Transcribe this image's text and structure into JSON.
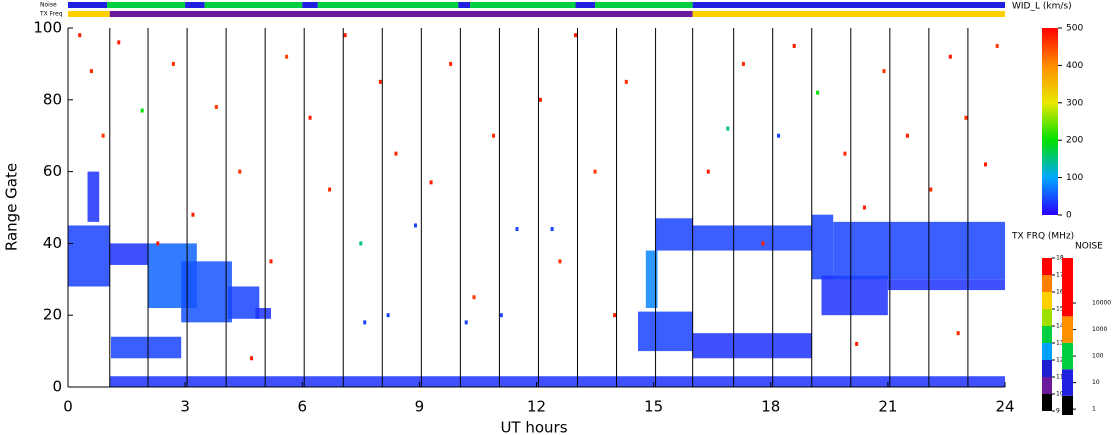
{
  "chart_data": {
    "type": "range-time",
    "xlabel": "UT hours",
    "ylabel": "Range Gate",
    "xlim": [
      0,
      24
    ],
    "ylim": [
      0,
      100
    ],
    "xticks": [
      0,
      3,
      6,
      9,
      12,
      15,
      18,
      21,
      24
    ],
    "yticks": [
      0,
      20,
      40,
      60,
      80,
      100
    ],
    "boundaries": [
      1.07,
      2.05,
      3.05,
      4.05,
      5.05,
      6.05,
      7.05,
      8.05,
      9.05,
      10.05,
      11.05,
      12.05,
      13.05,
      14.05,
      15.05,
      16.0,
      17.05,
      18.05,
      19.05,
      20.05,
      21.05,
      22.05,
      23.05
    ],
    "noise_label": "Noise",
    "tx_label": "TX Freq",
    "width_scale": {
      "title": "WID_L (km/s)",
      "lim": [
        0,
        500
      ],
      "ticks": [
        0,
        100,
        200,
        300,
        400,
        500
      ],
      "colors": [
        "#2a00ff",
        "#00a8ff",
        "#00e000",
        "#e8e800",
        "#ff8c00",
        "#ff0000"
      ]
    },
    "tx_scale": {
      "title": "TX FRQ (MHz)",
      "lim": [
        9,
        18
      ],
      "ticks": [
        9,
        10,
        11,
        12,
        13,
        14,
        15,
        16,
        17,
        18
      ],
      "colors": [
        "#000000",
        "#6a1a9a",
        "#2020d0",
        "#00a0ff",
        "#00d040",
        "#a0e000",
        "#ffd000",
        "#ff8000",
        "#ff0000"
      ]
    },
    "noise_scale": {
      "title": "NOISE",
      "lim": [
        0.6,
        500000
      ],
      "ticks": [
        1,
        10,
        100,
        1000,
        10000
      ],
      "log": true,
      "colors": [
        "#000000",
        "#2020e0",
        "#00d040",
        "#ff9000",
        "#ff0000"
      ]
    },
    "noise_strip": [
      [
        0,
        1,
        15
      ],
      [
        1,
        3,
        150
      ],
      [
        3,
        3.5,
        20
      ],
      [
        3.5,
        6,
        150
      ],
      [
        6,
        6.4,
        20
      ],
      [
        6.4,
        10,
        150
      ],
      [
        10,
        10.3,
        20
      ],
      [
        10.3,
        13,
        150
      ],
      [
        13,
        13.5,
        20
      ],
      [
        13.5,
        16,
        150
      ],
      [
        16,
        24,
        20
      ]
    ],
    "tx_strip": [
      [
        0,
        1.07,
        15.5
      ],
      [
        1.07,
        16.0,
        10.5
      ],
      [
        16.0,
        24,
        15.3
      ]
    ],
    "echoes": [
      [
        1.07,
        24,
        0,
        3,
        30
      ],
      [
        0,
        1.07,
        28,
        45,
        40
      ],
      [
        1.07,
        2.05,
        34,
        40,
        30
      ],
      [
        1.1,
        2.9,
        8,
        14,
        40
      ],
      [
        2.05,
        3.3,
        22,
        40,
        60
      ],
      [
        2.9,
        4.2,
        18,
        35,
        50
      ],
      [
        4.1,
        4.9,
        19,
        28,
        40
      ],
      [
        4.8,
        5.2,
        19,
        22,
        30
      ],
      [
        0.5,
        0.8,
        46,
        60,
        30
      ],
      [
        14.6,
        16.0,
        10,
        21,
        40
      ],
      [
        15.05,
        16.0,
        38,
        47,
        40
      ],
      [
        14.8,
        15.1,
        22,
        38,
        80
      ],
      [
        16.0,
        19.05,
        8,
        15,
        30
      ],
      [
        16.0,
        19.05,
        38,
        45,
        40
      ],
      [
        19.05,
        19.6,
        30,
        48,
        40
      ],
      [
        19.3,
        21.0,
        20,
        31,
        30
      ],
      [
        19.6,
        24,
        30,
        46,
        40
      ],
      [
        21.0,
        24,
        27,
        30,
        30
      ]
    ],
    "points": [
      [
        0.3,
        98,
        480
      ],
      [
        0.6,
        88,
        470
      ],
      [
        0.9,
        70,
        460
      ],
      [
        1.3,
        96,
        480
      ],
      [
        1.9,
        77,
        200
      ],
      [
        2.3,
        40,
        480
      ],
      [
        2.7,
        90,
        470
      ],
      [
        3.2,
        48,
        480
      ],
      [
        3.8,
        78,
        460
      ],
      [
        4.4,
        60,
        470
      ],
      [
        5.2,
        35,
        480
      ],
      [
        5.6,
        92,
        450
      ],
      [
        6.2,
        75,
        480
      ],
      [
        6.7,
        55,
        470
      ],
      [
        7.1,
        98,
        480
      ],
      [
        7.5,
        40,
        150
      ],
      [
        8.0,
        85,
        480
      ],
      [
        8.4,
        65,
        470
      ],
      [
        8.9,
        45,
        40
      ],
      [
        9.3,
        57,
        480
      ],
      [
        9.8,
        90,
        480
      ],
      [
        10.4,
        25,
        460
      ],
      [
        10.9,
        70,
        470
      ],
      [
        11.5,
        44,
        40
      ],
      [
        12.1,
        80,
        480
      ],
      [
        12.6,
        35,
        470
      ],
      [
        13.0,
        98,
        480
      ],
      [
        13.5,
        60,
        460
      ],
      [
        14.0,
        20,
        480
      ],
      [
        14.3,
        85,
        470
      ],
      [
        16.4,
        60,
        480
      ],
      [
        16.9,
        72,
        150
      ],
      [
        17.3,
        90,
        470
      ],
      [
        17.8,
        40,
        480
      ],
      [
        18.2,
        70,
        40
      ],
      [
        18.6,
        95,
        480
      ],
      [
        19.2,
        82,
        200
      ],
      [
        19.9,
        65,
        470
      ],
      [
        20.4,
        50,
        480
      ],
      [
        20.9,
        88,
        460
      ],
      [
        21.5,
        70,
        480
      ],
      [
        22.1,
        55,
        470
      ],
      [
        22.6,
        92,
        480
      ],
      [
        23.0,
        75,
        470
      ],
      [
        23.5,
        62,
        480
      ],
      [
        23.8,
        95,
        460
      ],
      [
        4.7,
        8,
        480
      ],
      [
        7.6,
        18,
        40
      ],
      [
        8.2,
        20,
        40
      ],
      [
        10.2,
        18,
        40
      ],
      [
        11.1,
        20,
        40
      ],
      [
        12.4,
        44,
        40
      ],
      [
        20.2,
        12,
        480
      ],
      [
        22.8,
        15,
        470
      ]
    ]
  }
}
